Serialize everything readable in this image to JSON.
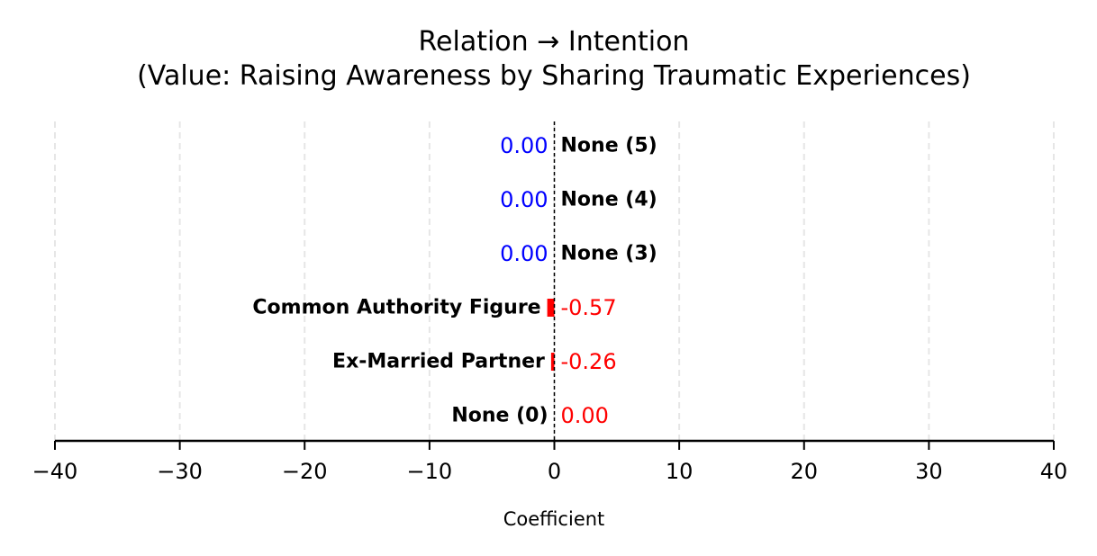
{
  "chart_data": {
    "type": "bar",
    "orientation": "horizontal",
    "title": "Relation → Intention",
    "subtitle": "(Value: Raising Awareness by Sharing Traumatic Experiences)",
    "xlabel": "Coefficient",
    "ylabel": "",
    "xlim": [
      -40,
      40
    ],
    "xticks": [
      -40,
      -30,
      -20,
      -10,
      0,
      10,
      20,
      30,
      40
    ],
    "xtick_labels": [
      "−40",
      "−30",
      "−20",
      "−10",
      "0",
      "10",
      "20",
      "30",
      "40"
    ],
    "grid": "vertical dashed",
    "zero_line": "dashed",
    "categories": [
      "None (5)",
      "None (4)",
      "None (3)",
      "Common Authority Figure",
      "Ex-Married Partner",
      "None (0)"
    ],
    "values": [
      0.0,
      0.0,
      0.0,
      -0.57,
      -0.26,
      0.0
    ],
    "value_labels": [
      "0.00",
      "0.00",
      "0.00",
      "-0.57",
      "-0.26",
      "0.00"
    ],
    "label_side": [
      "right",
      "right",
      "right",
      "left",
      "left",
      "left"
    ],
    "bar_color": "#ff0000",
    "positive_color": "#0000ff",
    "negative_color": "#ff0000",
    "grid_color": "#e6e6e6"
  }
}
